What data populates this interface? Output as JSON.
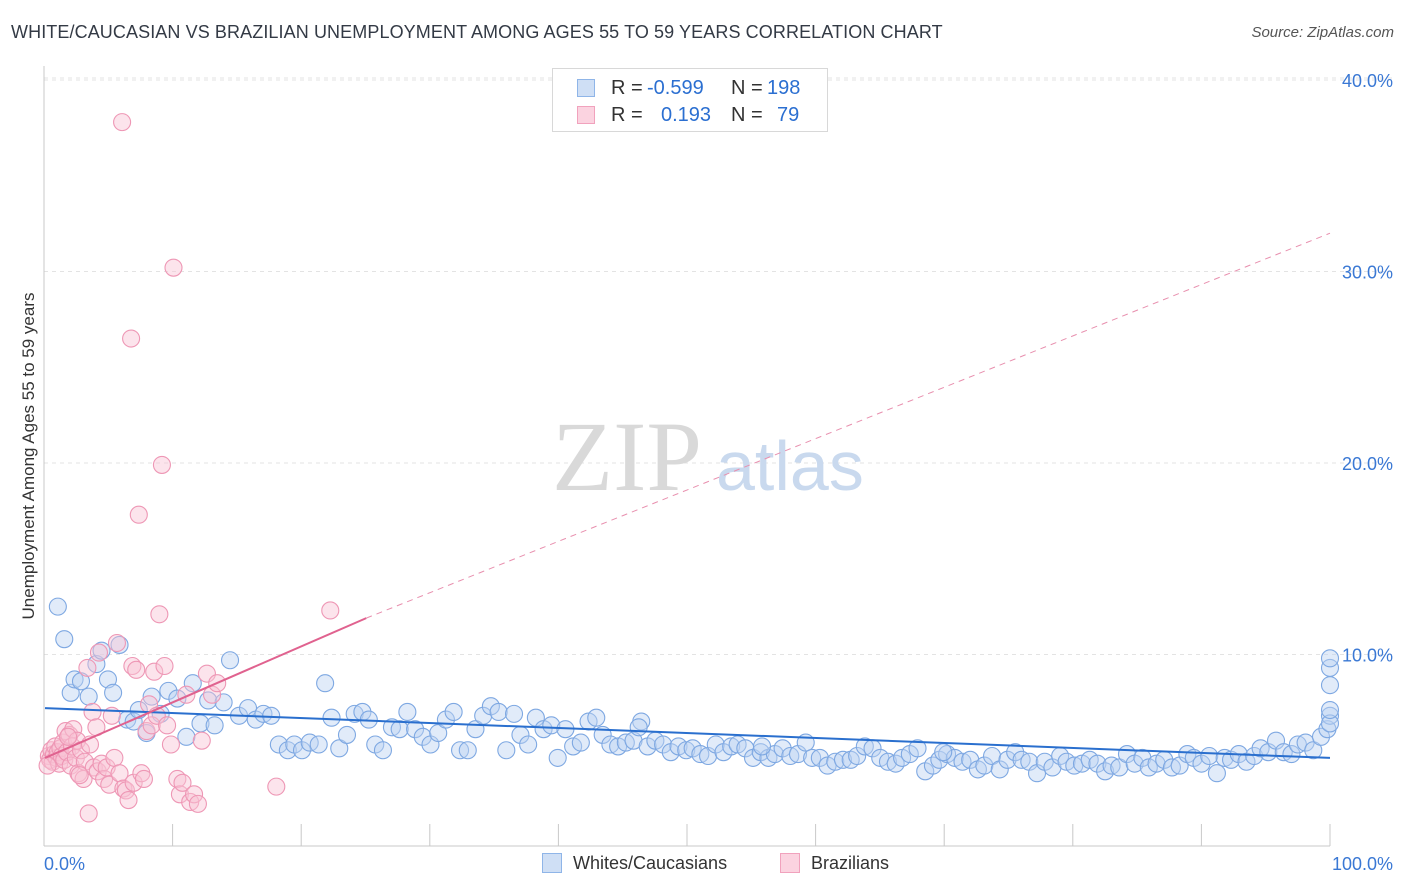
{
  "title": "WHITE/CAUCASIAN VS BRAZILIAN UNEMPLOYMENT AMONG AGES 55 TO 59 YEARS CORRELATION CHART",
  "source": "Source: ZipAtlas.com",
  "watermark": {
    "part1": "ZIP",
    "part2": "atlas"
  },
  "legend": [
    {
      "r_label": "R =",
      "r_value": "-0.599",
      "n_label": "N =",
      "n_value": "198",
      "color": "#8fb5e8"
    },
    {
      "r_label": "R =",
      "r_value": "0.193",
      "n_label": "N =",
      "n_value": "79",
      "color": "#f1a2bd"
    }
  ],
  "bottom_legend": [
    "Whites/Caucasians",
    "Brazilians"
  ],
  "chart_data": {
    "type": "scatter",
    "title": "WHITE/CAUCASIAN VS BRAZILIAN UNEMPLOYMENT AMONG AGES 55 TO 59 YEARS CORRELATION CHART",
    "xlabel": "",
    "ylabel": "Unemployment Among Ages 55 to 59 years",
    "xlim": [
      0,
      100
    ],
    "ylim": [
      0,
      41
    ],
    "x_tick_labels": [
      "0.0%",
      "100.0%"
    ],
    "y_ticks": [
      10,
      20,
      30,
      40
    ],
    "y_tick_labels": [
      "10.0%",
      "20.0%",
      "30.0%",
      "40.0%"
    ],
    "grid": true,
    "series": [
      {
        "name": "Whites/Caucasians",
        "color": "#8fb5e8",
        "line_color": "#2a6fce",
        "trend": {
          "x0": 0,
          "y0": 7.2,
          "x1": 100,
          "y1": 4.6
        },
        "points": [
          [
            1,
            12.5
          ],
          [
            1.5,
            10.8
          ],
          [
            2,
            8
          ],
          [
            2.3,
            8.7
          ],
          [
            2.8,
            8.6
          ],
          [
            3.4,
            7.8
          ],
          [
            4,
            9.5
          ],
          [
            4.4,
            10.2
          ],
          [
            4.9,
            8.7
          ],
          [
            5.3,
            8
          ],
          [
            5.8,
            10.5
          ],
          [
            6.4,
            6.6
          ],
          [
            6.9,
            6.5
          ],
          [
            7.3,
            7.1
          ],
          [
            7.9,
            5.9
          ],
          [
            8.3,
            7.8
          ],
          [
            9,
            6.9
          ],
          [
            9.6,
            8.1
          ],
          [
            10.3,
            7.7
          ],
          [
            11,
            5.7
          ],
          [
            11.5,
            8.5
          ],
          [
            12.1,
            6.4
          ],
          [
            12.7,
            7.6
          ],
          [
            13.2,
            6.3
          ],
          [
            13.9,
            7.5
          ],
          [
            14.4,
            9.7
          ],
          [
            15.1,
            6.8
          ],
          [
            15.8,
            7.2
          ],
          [
            16.4,
            6.6
          ],
          [
            17,
            6.9
          ],
          [
            17.6,
            6.8
          ],
          [
            18.2,
            5.3
          ],
          [
            18.9,
            5
          ],
          [
            19.4,
            5.3
          ],
          [
            20,
            5
          ],
          [
            20.6,
            5.4
          ],
          [
            21.3,
            5.3
          ],
          [
            21.8,
            8.5
          ],
          [
            22.3,
            6.7
          ],
          [
            22.9,
            5.1
          ],
          [
            23.5,
            5.8
          ],
          [
            24.1,
            6.9
          ],
          [
            24.7,
            7
          ],
          [
            25.2,
            6.6
          ],
          [
            25.7,
            5.3
          ],
          [
            26.3,
            5
          ],
          [
            27,
            6.2
          ],
          [
            27.6,
            6.1
          ],
          [
            28.2,
            7
          ],
          [
            28.8,
            6.1
          ],
          [
            29.4,
            5.7
          ],
          [
            30,
            5.3
          ],
          [
            30.6,
            5.9
          ],
          [
            31.2,
            6.6
          ],
          [
            31.8,
            7
          ],
          [
            32.3,
            5
          ],
          [
            32.9,
            5
          ],
          [
            33.5,
            6.1
          ],
          [
            34.1,
            6.8
          ],
          [
            34.7,
            7.3
          ],
          [
            35.3,
            7
          ],
          [
            35.9,
            5
          ],
          [
            36.5,
            6.9
          ],
          [
            37,
            5.8
          ],
          [
            37.6,
            5.3
          ],
          [
            38.2,
            6.7
          ],
          [
            38.8,
            6.1
          ],
          [
            39.4,
            6.3
          ],
          [
            39.9,
            4.6
          ],
          [
            40.5,
            6.1
          ],
          [
            41.1,
            5.2
          ],
          [
            41.7,
            5.4
          ],
          [
            42.3,
            6.5
          ],
          [
            42.9,
            6.7
          ],
          [
            43.4,
            5.8
          ],
          [
            44,
            5.3
          ],
          [
            44.6,
            5.2
          ],
          [
            45.2,
            5.4
          ],
          [
            45.8,
            5.5
          ],
          [
            46.4,
            6.5
          ],
          [
            46.9,
            5.2
          ],
          [
            47.5,
            5.5
          ],
          [
            48.1,
            5.3
          ],
          [
            48.7,
            4.9
          ],
          [
            49.3,
            5.2
          ],
          [
            49.9,
            5
          ],
          [
            50.4,
            5.1
          ],
          [
            51,
            4.8
          ],
          [
            51.6,
            4.7
          ],
          [
            52.2,
            5.3
          ],
          [
            52.8,
            4.9
          ],
          [
            53.4,
            5.2
          ],
          [
            53.9,
            5.3
          ],
          [
            54.5,
            5.1
          ],
          [
            55.1,
            4.6
          ],
          [
            55.7,
            4.9
          ],
          [
            56.3,
            4.6
          ],
          [
            56.8,
            4.8
          ],
          [
            57.4,
            5.1
          ],
          [
            58,
            4.7
          ],
          [
            58.6,
            4.8
          ],
          [
            59.2,
            5.4
          ],
          [
            59.7,
            4.6
          ],
          [
            60.3,
            4.6
          ],
          [
            60.9,
            4.2
          ],
          [
            61.5,
            4.4
          ],
          [
            62.1,
            4.5
          ],
          [
            62.7,
            4.5
          ],
          [
            63.2,
            4.7
          ],
          [
            63.8,
            5.2
          ],
          [
            64.4,
            5.1
          ],
          [
            65,
            4.6
          ],
          [
            65.6,
            4.4
          ],
          [
            66.2,
            4.3
          ],
          [
            66.7,
            4.6
          ],
          [
            67.3,
            4.8
          ],
          [
            67.9,
            5.1
          ],
          [
            68.5,
            3.9
          ],
          [
            69.1,
            4.2
          ],
          [
            69.6,
            4.5
          ],
          [
            70.2,
            4.8
          ],
          [
            70.8,
            4.6
          ],
          [
            71.4,
            4.4
          ],
          [
            72,
            4.5
          ],
          [
            72.6,
            4
          ],
          [
            73.1,
            4.2
          ],
          [
            73.7,
            4.7
          ],
          [
            74.3,
            4
          ],
          [
            74.9,
            4.5
          ],
          [
            75.5,
            4.9
          ],
          [
            76,
            4.5
          ],
          [
            76.6,
            4.4
          ],
          [
            77.2,
            3.8
          ],
          [
            77.8,
            4.4
          ],
          [
            78.4,
            4.1
          ],
          [
            79,
            4.7
          ],
          [
            79.5,
            4.4
          ],
          [
            80.1,
            4.2
          ],
          [
            80.7,
            4.3
          ],
          [
            81.3,
            4.5
          ],
          [
            81.9,
            4.3
          ],
          [
            82.5,
            3.9
          ],
          [
            83,
            4.2
          ],
          [
            83.6,
            4.1
          ],
          [
            84.2,
            4.8
          ],
          [
            84.8,
            4.3
          ],
          [
            85.4,
            4.6
          ],
          [
            85.9,
            4.1
          ],
          [
            86.5,
            4.3
          ],
          [
            87.1,
            4.5
          ],
          [
            87.7,
            4.1
          ],
          [
            88.3,
            4.2
          ],
          [
            88.9,
            4.8
          ],
          [
            89.4,
            4.6
          ],
          [
            90,
            4.3
          ],
          [
            90.6,
            4.7
          ],
          [
            91.2,
            3.8
          ],
          [
            91.8,
            4.6
          ],
          [
            92.3,
            4.5
          ],
          [
            92.9,
            4.8
          ],
          [
            93.5,
            4.4
          ],
          [
            94.1,
            4.7
          ],
          [
            94.6,
            5.1
          ],
          [
            95.2,
            4.9
          ],
          [
            95.8,
            5.5
          ],
          [
            96.4,
            4.9
          ],
          [
            97,
            4.8
          ],
          [
            97.5,
            5.3
          ],
          [
            98.1,
            5.4
          ],
          [
            98.7,
            5
          ],
          [
            99.3,
            5.7
          ],
          [
            99.8,
            6.1
          ],
          [
            100.4,
            6.8
          ],
          [
            101,
            6.4
          ],
          [
            101.5,
            7.1
          ],
          [
            102,
            8.4
          ],
          [
            102.4,
            9.3
          ],
          [
            102.8,
            9.8
          ],
          [
            69.9,
            4.9
          ],
          [
            55.8,
            5.2
          ],
          [
            46.2,
            6.2
          ]
        ]
      },
      {
        "name": "Brazilians",
        "color": "#f1a2bd",
        "line_color": "#e0628f",
        "trend": {
          "x0": 0,
          "y0": 4.6,
          "x1": 25,
          "y1": 11.9
        },
        "trend_dashed": {
          "x0": 25,
          "y0": 11.9,
          "x1": 100,
          "y1": 32
        },
        "points": [
          [
            0.3,
            4.7
          ],
          [
            0.4,
            4.5
          ],
          [
            0.5,
            5
          ],
          [
            0.6,
            4.4
          ],
          [
            0.7,
            4.8
          ],
          [
            0.8,
            5.2
          ],
          [
            0.9,
            4.6
          ],
          [
            1,
            4.9
          ],
          [
            1.1,
            4.3
          ],
          [
            1.2,
            5.1
          ],
          [
            1.3,
            4.7
          ],
          [
            1.4,
            5.4
          ],
          [
            1.5,
            4.5
          ],
          [
            1.6,
            6
          ],
          [
            1.7,
            4.9
          ],
          [
            1.9,
            5.8
          ],
          [
            2,
            4.2
          ],
          [
            2.1,
            5.2
          ],
          [
            2.2,
            6.1
          ],
          [
            2.4,
            4.6
          ],
          [
            2.5,
            5.5
          ],
          [
            2.6,
            3.8
          ],
          [
            2.8,
            5
          ],
          [
            3,
            3.5
          ],
          [
            3.1,
            4.4
          ],
          [
            3.3,
            9.3
          ],
          [
            3.4,
            1.7
          ],
          [
            3.5,
            5.3
          ],
          [
            3.7,
            7
          ],
          [
            3.8,
            4.1
          ],
          [
            4,
            6.2
          ],
          [
            4.1,
            3.9
          ],
          [
            4.2,
            10.1
          ],
          [
            4.4,
            4.3
          ],
          [
            4.6,
            3.5
          ],
          [
            4.8,
            4.1
          ],
          [
            5,
            3.2
          ],
          [
            5.2,
            6.8
          ],
          [
            5.4,
            4.6
          ],
          [
            5.6,
            10.6
          ],
          [
            5.8,
            3.8
          ],
          [
            6,
            37.8
          ],
          [
            6.1,
            3
          ],
          [
            6.3,
            2.9
          ],
          [
            6.5,
            2.4
          ],
          [
            6.7,
            26.5
          ],
          [
            6.8,
            9.4
          ],
          [
            6.9,
            3.3
          ],
          [
            7.1,
            9.2
          ],
          [
            7.3,
            17.3
          ],
          [
            7.5,
            3.8
          ],
          [
            7.7,
            3.5
          ],
          [
            7.9,
            6
          ],
          [
            8.1,
            7.4
          ],
          [
            8.3,
            6.3
          ],
          [
            8.5,
            9.1
          ],
          [
            8.7,
            6.8
          ],
          [
            8.9,
            12.1
          ],
          [
            9.1,
            19.9
          ],
          [
            9.3,
            9.4
          ],
          [
            9.5,
            6.3
          ],
          [
            9.8,
            5.3
          ],
          [
            10,
            30.2
          ],
          [
            10.3,
            3.5
          ],
          [
            10.5,
            2.7
          ],
          [
            10.7,
            3.3
          ],
          [
            11,
            7.9
          ],
          [
            11.3,
            2.3
          ],
          [
            11.6,
            2.7
          ],
          [
            11.9,
            2.2
          ],
          [
            12.2,
            5.5
          ],
          [
            12.6,
            9
          ],
          [
            13,
            7.9
          ],
          [
            13.4,
            8.5
          ],
          [
            18,
            3.1
          ],
          [
            22.2,
            12.3
          ],
          [
            0.2,
            4.2
          ],
          [
            1.8,
            5.7
          ],
          [
            2.7,
            3.7
          ]
        ]
      }
    ]
  }
}
